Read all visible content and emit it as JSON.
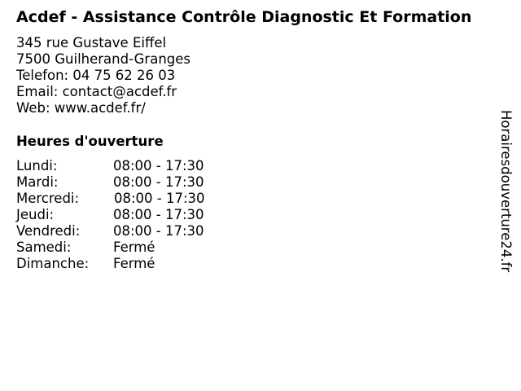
{
  "business": {
    "name": "Acdef - Assistance Contrôle Diagnostic Et Formation",
    "address": "345 rue Gustave Eiffel",
    "city": "7500 Guilherand-Granges",
    "phone": "Telefon: 04 75 62 26 03",
    "email": "Email: contact@acdef.fr",
    "web": "Web: www.acdef.fr/"
  },
  "hours": {
    "heading": "Heures d'ouverture",
    "days": [
      {
        "day": "Lundi:",
        "time": "08:00 - 17:30"
      },
      {
        "day": "Mardi:",
        "time": "08:00 - 17:30"
      },
      {
        "day": "Mercredi:",
        "time": "08:00 - 17:30"
      },
      {
        "day": "Jeudi:",
        "time": "08:00 - 17:30"
      },
      {
        "day": "Vendredi:",
        "time": "08:00 - 17:30"
      },
      {
        "day": "Samedi:",
        "time": "Fermé"
      },
      {
        "day": "Dimanche:",
        "time": "Fermé"
      }
    ]
  },
  "watermark": "Horairesdouverture24.fr"
}
